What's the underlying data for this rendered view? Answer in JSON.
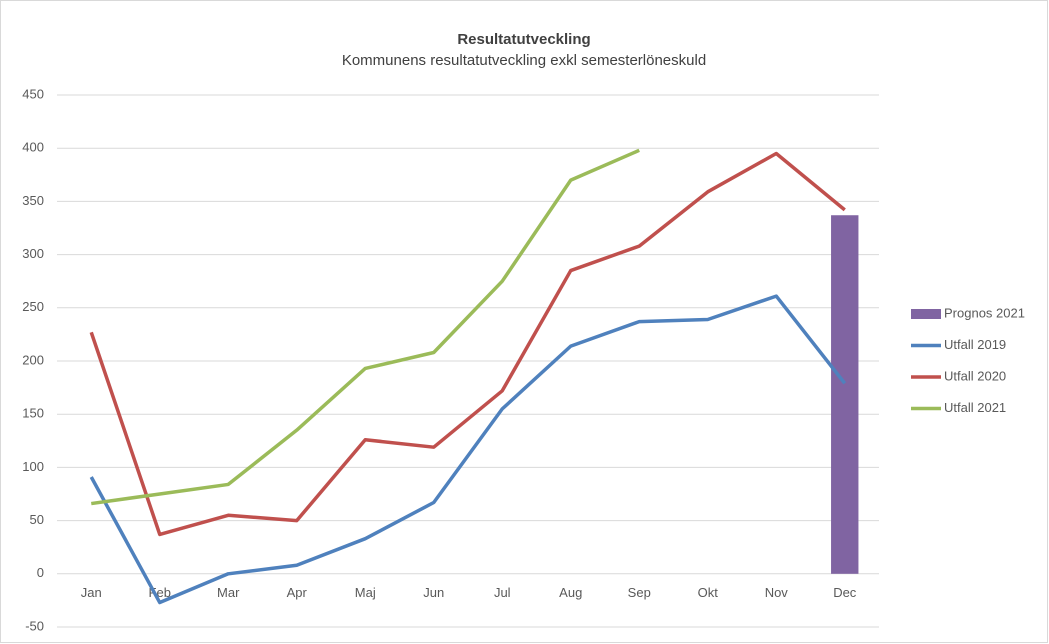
{
  "chart_data": {
    "type": "combo",
    "title": "Resultatutveckling",
    "subtitle": "Kommunens resultatutveckling exkl semesterlöneskuld",
    "categories": [
      "Jan",
      "Feb",
      "Mar",
      "Apr",
      "Maj",
      "Jun",
      "Jul",
      "Aug",
      "Sep",
      "Okt",
      "Nov",
      "Dec"
    ],
    "series": [
      {
        "name": "Prognos 2021",
        "type": "bar",
        "color": "#8064a2",
        "values": [
          null,
          null,
          null,
          null,
          null,
          null,
          null,
          null,
          null,
          null,
          null,
          337
        ]
      },
      {
        "name": "Utfall 2019",
        "type": "line",
        "color": "#4f81bd",
        "values": [
          91,
          -27,
          0,
          8,
          33,
          67,
          155,
          214,
          237,
          239,
          261,
          179
        ]
      },
      {
        "name": "Utfall 2020",
        "type": "line",
        "color": "#c0504d",
        "values": [
          227,
          37,
          55,
          50,
          126,
          119,
          172,
          285,
          308,
          359,
          395,
          342
        ]
      },
      {
        "name": "Utfall 2021",
        "type": "line",
        "color": "#9bbb59",
        "values": [
          66,
          75,
          84,
          135,
          193,
          208,
          275,
          370,
          398,
          null,
          null,
          null
        ]
      }
    ],
    "ylim": [
      -50,
      450
    ],
    "yticks": [
      -50,
      0,
      50,
      100,
      150,
      200,
      250,
      300,
      350,
      400,
      450
    ],
    "grid": true,
    "legend": "right"
  }
}
